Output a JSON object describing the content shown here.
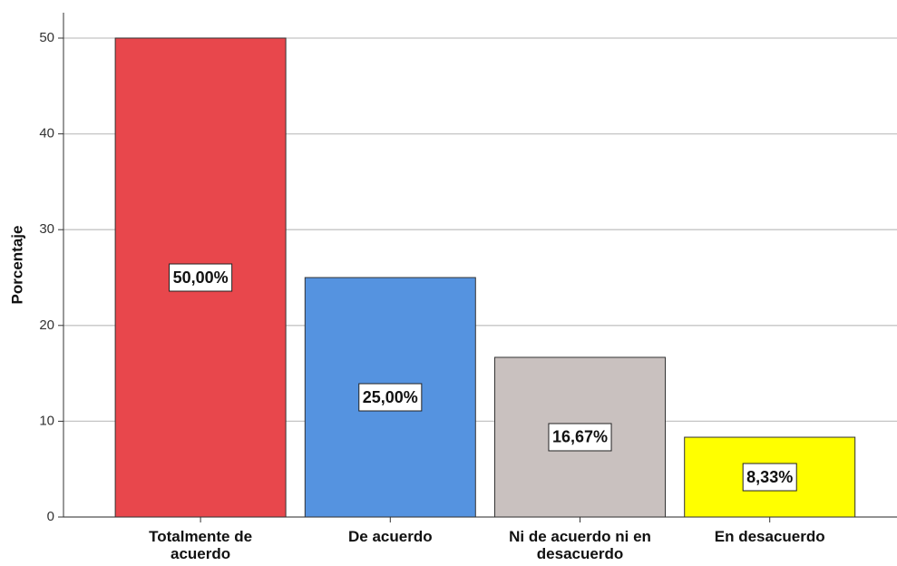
{
  "chart_data": {
    "type": "bar",
    "y_label": "Porcentaje",
    "categories": [
      "Totalmente de acuerdo",
      "De acuerdo",
      "Ni de acuerdo ni en desacuerdo",
      "En desacuerdo"
    ],
    "values": [
      50,
      25,
      16.67,
      8.33
    ],
    "value_labels": [
      "50,00%",
      "25,00%",
      "16,67%",
      "8,33%"
    ],
    "colors": [
      "#e8474c",
      "#5593e0",
      "#c9c1bf",
      "#ffff00"
    ],
    "ylim": [
      0,
      50
    ],
    "yticks": [
      0,
      10,
      20,
      30,
      40,
      50
    ],
    "grid": true
  }
}
